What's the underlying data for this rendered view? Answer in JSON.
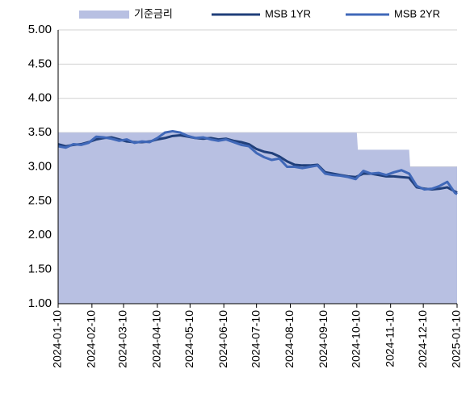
{
  "chart_data": {
    "type": "line",
    "xlim": [
      "2024-01-10",
      "2025-01-10"
    ],
    "xticks": [
      "2024-01-10",
      "2024-02-10",
      "2024-03-10",
      "2024-04-10",
      "2024-05-10",
      "2024-06-10",
      "2024-07-10",
      "2024-08-10",
      "2024-09-10",
      "2024-10-10",
      "2024-11-10",
      "2024-12-10",
      "2025-01-10"
    ],
    "ylim": [
      1,
      5
    ],
    "yticks": [
      {
        "value": 1,
        "label": "1.00"
      },
      {
        "value": 1.5,
        "label": "1.50"
      },
      {
        "value": 2,
        "label": "2.00"
      },
      {
        "value": 2.5,
        "label": "2.50"
      },
      {
        "value": 3,
        "label": "3.00"
      },
      {
        "value": 3.5,
        "label": "3.50"
      },
      {
        "value": 4,
        "label": "4.00"
      },
      {
        "value": 4.5,
        "label": "4.50"
      },
      {
        "value": 5,
        "label": "5.00"
      }
    ],
    "grid": true,
    "legend": "top",
    "x": [
      "2024-01-10",
      "2024-01-17",
      "2024-01-24",
      "2024-01-31",
      "2024-02-07",
      "2024-02-14",
      "2024-02-21",
      "2024-02-28",
      "2024-03-06",
      "2024-03-13",
      "2024-03-20",
      "2024-03-27",
      "2024-04-03",
      "2024-04-10",
      "2024-04-17",
      "2024-04-24",
      "2024-05-01",
      "2024-05-08",
      "2024-05-15",
      "2024-05-22",
      "2024-05-29",
      "2024-06-05",
      "2024-06-12",
      "2024-06-19",
      "2024-06-26",
      "2024-07-03",
      "2024-07-10",
      "2024-07-17",
      "2024-07-24",
      "2024-07-31",
      "2024-08-07",
      "2024-08-14",
      "2024-08-21",
      "2024-08-28",
      "2024-09-04",
      "2024-09-11",
      "2024-09-18",
      "2024-09-25",
      "2024-10-02",
      "2024-10-09",
      "2024-10-16",
      "2024-10-23",
      "2024-10-30",
      "2024-11-06",
      "2024-11-13",
      "2024-11-20",
      "2024-11-27",
      "2024-12-04",
      "2024-12-11",
      "2024-12-18",
      "2024-12-25",
      "2025-01-01",
      "2025-01-08",
      "2025-01-10"
    ],
    "series": [
      {
        "name": "기준금리",
        "type": "area",
        "color": "#b8c0e2",
        "x": [
          "2024-01-10",
          "2024-10-10",
          "2024-10-11",
          "2024-11-27",
          "2024-11-28",
          "2025-01-10"
        ],
        "values": [
          3.5,
          3.5,
          3.25,
          3.25,
          3.0,
          3.0
        ]
      },
      {
        "name": "MSB 1YR",
        "type": "line",
        "color": "#203f7a",
        "values": [
          3.33,
          3.3,
          3.32,
          3.33,
          3.36,
          3.4,
          3.42,
          3.43,
          3.4,
          3.37,
          3.36,
          3.36,
          3.37,
          3.4,
          3.42,
          3.45,
          3.46,
          3.44,
          3.42,
          3.41,
          3.42,
          3.4,
          3.41,
          3.38,
          3.36,
          3.33,
          3.26,
          3.22,
          3.2,
          3.15,
          3.08,
          3.03,
          3.02,
          3.02,
          3.03,
          2.92,
          2.9,
          2.88,
          2.86,
          2.85,
          2.9,
          2.9,
          2.88,
          2.86,
          2.86,
          2.85,
          2.84,
          2.7,
          2.68,
          2.67,
          2.68,
          2.7,
          2.64,
          2.62
        ]
      },
      {
        "name": "MSB 2YR",
        "type": "line",
        "color": "#4068b8",
        "values": [
          3.3,
          3.28,
          3.33,
          3.32,
          3.35,
          3.44,
          3.43,
          3.41,
          3.38,
          3.4,
          3.35,
          3.37,
          3.36,
          3.42,
          3.5,
          3.52,
          3.5,
          3.45,
          3.42,
          3.43,
          3.4,
          3.38,
          3.4,
          3.36,
          3.32,
          3.3,
          3.2,
          3.14,
          3.1,
          3.12,
          3.0,
          3.0,
          2.98,
          3.0,
          3.02,
          2.9,
          2.88,
          2.87,
          2.85,
          2.82,
          2.94,
          2.9,
          2.91,
          2.88,
          2.92,
          2.95,
          2.9,
          2.72,
          2.67,
          2.68,
          2.72,
          2.78,
          2.62,
          2.6
        ]
      }
    ]
  }
}
